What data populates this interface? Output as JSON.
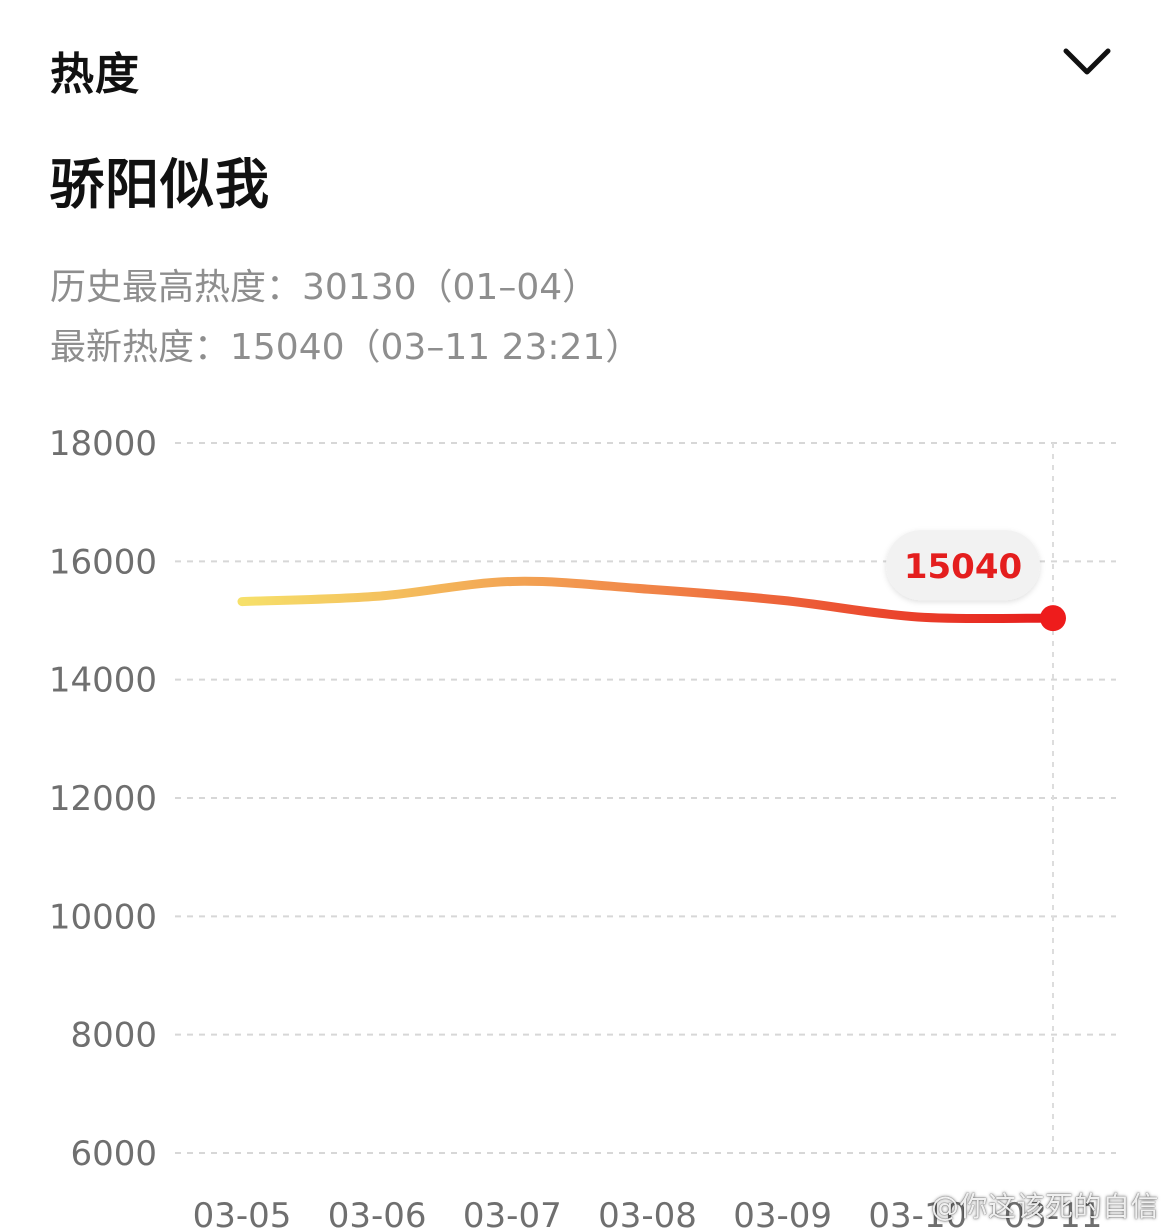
{
  "header": {
    "title": "热度"
  },
  "topic": {
    "title": "骄阳似我"
  },
  "stats": {
    "history_high": "历史最高热度：30130（01–04）",
    "latest": "最新热度：15040（03–11 23:21）"
  },
  "chart_data": {
    "type": "line",
    "title": "",
    "xlabel": "",
    "ylabel": "",
    "categories": [
      "03-05",
      "03-06",
      "03-07",
      "03-08",
      "03-09",
      "03-10",
      "03-11"
    ],
    "series": [
      {
        "values": [
          15320,
          15410,
          15660,
          15530,
          15340,
          15060,
          15040
        ]
      }
    ],
    "ylim": [
      6000,
      18000
    ],
    "y_ticks": [
      "18000",
      "16000",
      "14000",
      "12000",
      "10000",
      "8000",
      "6000"
    ],
    "highlight": {
      "category": "03-11",
      "value_label": "15040"
    },
    "grid": true,
    "legend": "none",
    "colors": {
      "line_start": "#f6e06a",
      "line_mid": "#f18a4a",
      "line_end": "#e61b1b",
      "point": "#ee1c1c",
      "grid": "#d7d7d7"
    }
  },
  "watermark": "@你这该死的自信",
  "icons": {
    "collapse": "chevron-down-icon"
  }
}
